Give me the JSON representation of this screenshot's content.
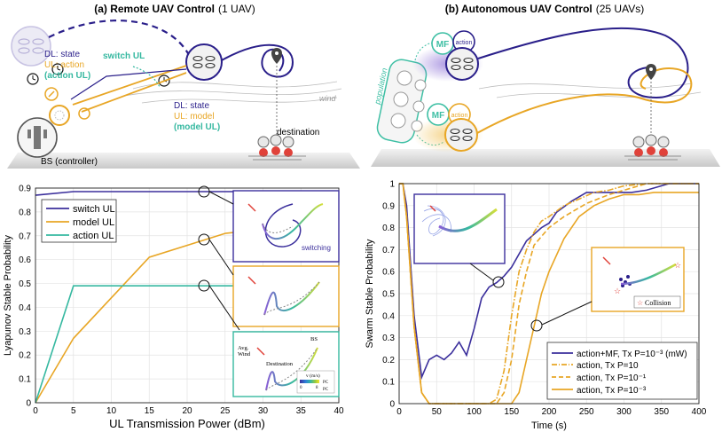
{
  "panel_a": {
    "title_bold": "(a) Remote UAV Control",
    "title_rest": "(1 UAV)",
    "dl_state_1": "DL: state",
    "ul_action": "UL: action",
    "action_ul": "(action UL)",
    "switch_ul": "switch UL",
    "dl_state_2": "DL: state",
    "ul_model": "UL: model",
    "model_ul": "(model UL)",
    "wind": "wind",
    "destination": "destination",
    "bs": "BS (controller)"
  },
  "panel_b": {
    "title_bold": "(b) Autonomous UAV Control",
    "title_rest": "(25 UAVs)",
    "population": "population",
    "mf": "MF",
    "action": "action"
  },
  "insets_a": {
    "switching": "switching",
    "avg_wind": "Avg.\nWind",
    "destination": "Destination",
    "bs": "BS",
    "cb_title": "v (m/s)",
    "cb_min": "0",
    "cb_max": "8",
    "legend_pc": "PC"
  },
  "insets_b": {
    "collision": "Collision"
  },
  "colors": {
    "purple": "#3b2f9c",
    "orange": "#e8a625",
    "teal": "#35b8a0",
    "mf_teal": "#3ebfa4"
  },
  "chart_data": [
    {
      "type": "line",
      "xlabel": "UL Transmission Power (dBm)",
      "ylabel": "Lyapunov Stable Probability",
      "xlim": [
        0,
        40
      ],
      "ylim": [
        0,
        0.9
      ],
      "xticks": [
        "0",
        "5",
        "10",
        "15",
        "20",
        "25",
        "30",
        "35",
        "40"
      ],
      "yticks": [
        "0",
        "0.1",
        "0.2",
        "0.3",
        "0.4",
        "0.5",
        "0.6",
        "0.7",
        "0.8",
        "0.9"
      ],
      "legend": "top-left",
      "series": [
        {
          "name": "switch UL",
          "color": "#3b2f9c",
          "x": [
            0,
            5,
            40
          ],
          "y": [
            0.87,
            0.885,
            0.885
          ]
        },
        {
          "name": "model UL",
          "color": "#e8a625",
          "x": [
            0,
            5,
            15,
            25,
            40
          ],
          "y": [
            0,
            0.27,
            0.61,
            0.71,
            0.76
          ]
        },
        {
          "name": "action UL",
          "color": "#35b8a0",
          "x": [
            0,
            5,
            40
          ],
          "y": [
            0,
            0.49,
            0.49
          ]
        }
      ]
    },
    {
      "type": "line",
      "xlabel": "Time (s)",
      "ylabel": "Swarm Stable Probability",
      "xlim": [
        0,
        400
      ],
      "ylim": [
        0,
        1
      ],
      "xticks": [
        "0",
        "50",
        "100",
        "150",
        "200",
        "250",
        "300",
        "350",
        "400"
      ],
      "yticks": [
        "0",
        "0.1",
        "0.2",
        "0.3",
        "0.4",
        "0.5",
        "0.6",
        "0.7",
        "0.8",
        "0.9",
        "1"
      ],
      "legend": "bottom-right",
      "series": [
        {
          "name": "action+MF, Tx P=10⁻³ (mW)",
          "color": "#3b2f9c",
          "dash": "solid",
          "x": [
            0,
            5,
            10,
            20,
            30,
            40,
            50,
            60,
            70,
            80,
            90,
            100,
            110,
            120,
            130,
            140,
            150,
            170,
            190,
            200,
            210,
            230,
            250,
            270,
            290,
            310,
            330,
            360,
            400
          ],
          "y": [
            1,
            1,
            0.9,
            0.4,
            0.12,
            0.2,
            0.22,
            0.2,
            0.23,
            0.28,
            0.22,
            0.34,
            0.48,
            0.53,
            0.55,
            0.58,
            0.62,
            0.74,
            0.8,
            0.82,
            0.87,
            0.92,
            0.96,
            0.96,
            0.96,
            0.96,
            0.97,
            1,
            1
          ]
        },
        {
          "name": "action, Tx P=10",
          "color": "#e8a625",
          "dash": "dashdot",
          "x": [
            0,
            5,
            10,
            20,
            30,
            40,
            60,
            100,
            120,
            130,
            140,
            150,
            160,
            170,
            180,
            190,
            200,
            220,
            240,
            260,
            280,
            300,
            330,
            350,
            400
          ],
          "y": [
            1,
            1,
            0.85,
            0.35,
            0.05,
            0,
            0,
            0,
            0,
            0.02,
            0.15,
            0.4,
            0.6,
            0.7,
            0.78,
            0.83,
            0.85,
            0.9,
            0.93,
            0.96,
            0.97,
            0.99,
            1,
            1,
            1
          ]
        },
        {
          "name": "action, Tx P=10⁻¹",
          "color": "#e8a625",
          "dash": "dashed",
          "x": [
            0,
            5,
            10,
            20,
            30,
            40,
            60,
            110,
            130,
            140,
            150,
            160,
            170,
            180,
            190,
            200,
            220,
            250,
            280,
            300,
            330,
            350,
            400
          ],
          "y": [
            1,
            1,
            0.85,
            0.35,
            0.05,
            0,
            0,
            0,
            0,
            0.05,
            0.2,
            0.45,
            0.6,
            0.72,
            0.76,
            0.8,
            0.85,
            0.91,
            0.95,
            0.97,
            1,
            1,
            1
          ]
        },
        {
          "name": "action, Tx P=10⁻³",
          "color": "#e8a625",
          "dash": "solid",
          "x": [
            0,
            5,
            10,
            20,
            30,
            40,
            60,
            130,
            150,
            160,
            170,
            180,
            190,
            200,
            220,
            240,
            260,
            280,
            300,
            320,
            340,
            360,
            400
          ],
          "y": [
            1,
            1,
            0.85,
            0.35,
            0.05,
            0,
            0,
            0,
            0,
            0.05,
            0.2,
            0.35,
            0.5,
            0.6,
            0.75,
            0.85,
            0.9,
            0.93,
            0.95,
            0.95,
            0.96,
            0.96,
            0.96
          ]
        }
      ]
    }
  ]
}
